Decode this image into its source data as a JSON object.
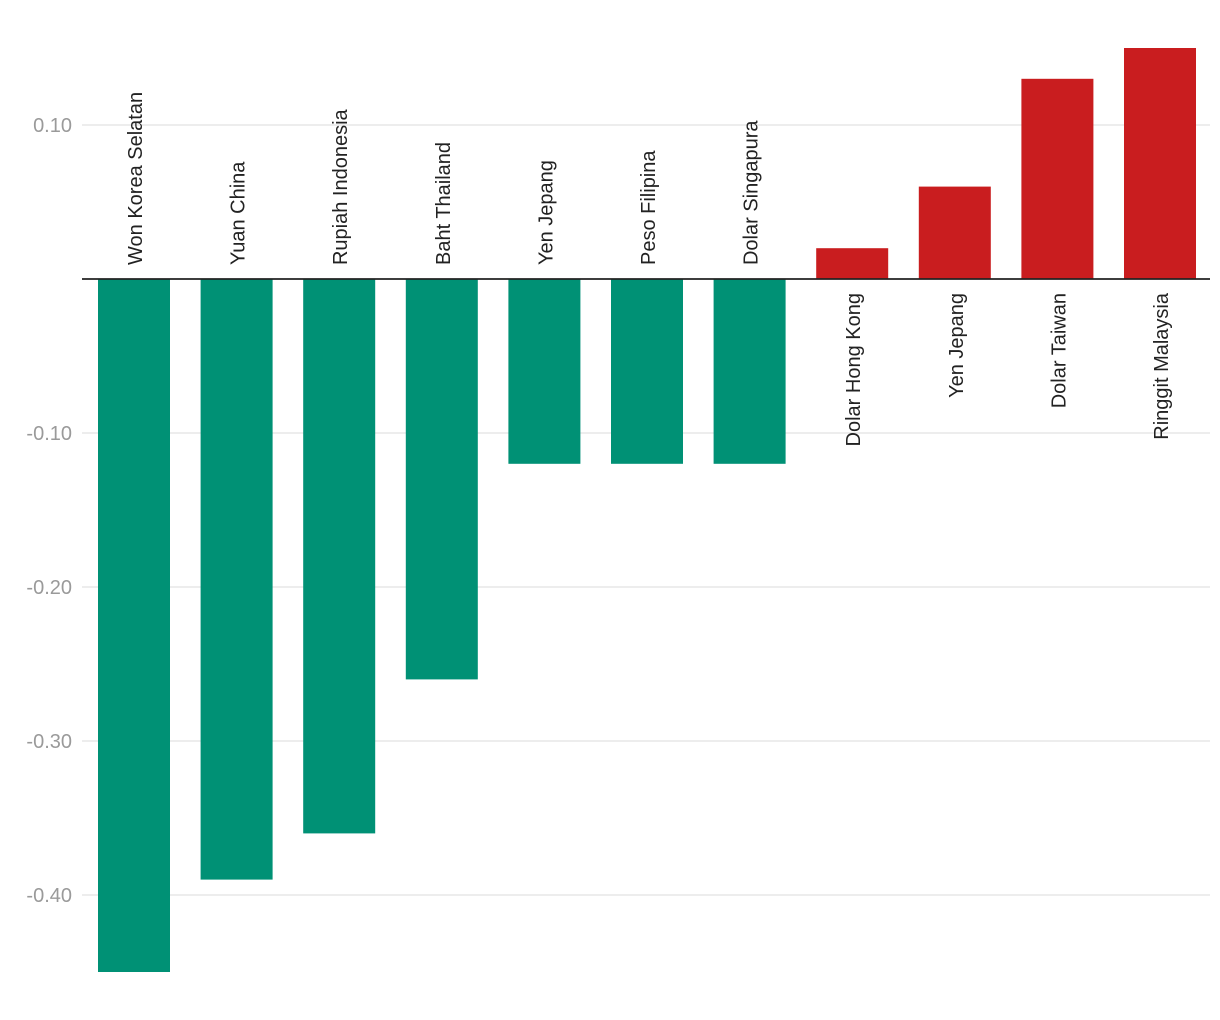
{
  "chart_data": {
    "type": "bar",
    "title": "",
    "xlabel": "",
    "ylabel": "",
    "categories": [
      "Won Korea Selatan",
      "Yuan China",
      "Rupiah Indonesia",
      "Baht Thailand",
      "Yen Jepang",
      "Peso Filipina",
      "Dolar Singapura",
      "Dolar Hong Kong",
      "Yen Jepang",
      "Dolar Taiwan",
      "Ringgit Malaysia"
    ],
    "values": [
      -0.45,
      -0.39,
      -0.36,
      -0.26,
      -0.12,
      -0.12,
      -0.12,
      0.02,
      0.06,
      0.13,
      0.15
    ],
    "ylim": [
      -0.46,
      0.16
    ],
    "yticks": [
      0.1,
      -0.1,
      -0.2,
      -0.3,
      -0.4
    ],
    "ytick_labels": [
      "0.10",
      "-0.10",
      "-0.20",
      "-0.30",
      "-0.40"
    ],
    "grid": true,
    "legend": "none",
    "colors": {
      "negative": "#009175",
      "positive": "#c91d1f",
      "gridline": "#e2e2e2",
      "zero_line": "#222222",
      "tick_label": "#9a9a9a",
      "category_label": "#222222"
    }
  }
}
